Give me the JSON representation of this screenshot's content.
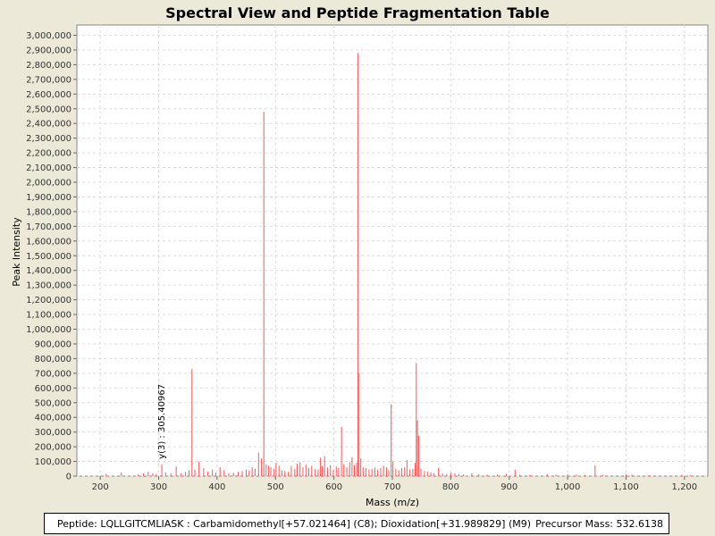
{
  "chart_data": {
    "type": "bar",
    "title": "Spectral View and Peptide Fragmentation Table",
    "xlabel": "Mass (m/z)",
    "ylabel": "Peak Intensity",
    "xlim": [
      160,
      1240
    ],
    "ylim": [
      0,
      3070000
    ],
    "x_ticks": [
      200,
      300,
      400,
      500,
      600,
      700,
      800,
      900,
      1000,
      1100,
      1200
    ],
    "x_tick_labels": [
      "200",
      "300",
      "400",
      "500",
      "600",
      "700",
      "800",
      "900",
      "1,000",
      "1,100",
      "1,200"
    ],
    "y_ticks": [
      0,
      100000,
      200000,
      300000,
      400000,
      500000,
      600000,
      700000,
      800000,
      900000,
      1000000,
      1100000,
      1200000,
      1300000,
      1400000,
      1500000,
      1600000,
      1700000,
      1800000,
      1900000,
      2000000,
      2100000,
      2200000,
      2300000,
      2400000,
      2500000,
      2600000,
      2700000,
      2800000,
      2900000,
      3000000
    ],
    "y_tick_labels": [
      "0",
      "100,000",
      "200,000",
      "300,000",
      "400,000",
      "500,000",
      "600,000",
      "700,000",
      "800,000",
      "900,000",
      "1,000,000",
      "1,100,000",
      "1,200,000",
      "1,300,000",
      "1,400,000",
      "1,500,000",
      "1,600,000",
      "1,700,000",
      "1,800,000",
      "1,900,000",
      "2,000,000",
      "2,100,000",
      "2,200,000",
      "2,300,000",
      "2,400,000",
      "2,500,000",
      "2,600,000",
      "2,700,000",
      "2,800,000",
      "2,900,000",
      "3,000,000"
    ],
    "grid": true,
    "peak_color": "#ff5555",
    "peaks": [
      {
        "mz": 210,
        "i": 15000
      },
      {
        "mz": 236,
        "i": 25000
      },
      {
        "mz": 265,
        "i": 12000
      },
      {
        "mz": 274,
        "i": 18000
      },
      {
        "mz": 282,
        "i": 30000
      },
      {
        "mz": 290,
        "i": 20000
      },
      {
        "mz": 296,
        "i": 15000
      },
      {
        "mz": 305.40967,
        "i": 80000
      },
      {
        "mz": 312,
        "i": 25000
      },
      {
        "mz": 321,
        "i": 20000
      },
      {
        "mz": 330,
        "i": 65000
      },
      {
        "mz": 338,
        "i": 18000
      },
      {
        "mz": 346,
        "i": 30000
      },
      {
        "mz": 352,
        "i": 40000
      },
      {
        "mz": 357,
        "i": 730000
      },
      {
        "mz": 362,
        "i": 45000
      },
      {
        "mz": 369,
        "i": 100000
      },
      {
        "mz": 377,
        "i": 55000
      },
      {
        "mz": 384,
        "i": 30000
      },
      {
        "mz": 392,
        "i": 45000
      },
      {
        "mz": 398,
        "i": 25000
      },
      {
        "mz": 405,
        "i": 60000
      },
      {
        "mz": 412,
        "i": 40000
      },
      {
        "mz": 420,
        "i": 20000
      },
      {
        "mz": 428,
        "i": 25000
      },
      {
        "mz": 436,
        "i": 30000
      },
      {
        "mz": 443,
        "i": 35000
      },
      {
        "mz": 450,
        "i": 45000
      },
      {
        "mz": 455,
        "i": 40000
      },
      {
        "mz": 460,
        "i": 60000
      },
      {
        "mz": 465,
        "i": 50000
      },
      {
        "mz": 471,
        "i": 160000
      },
      {
        "mz": 476,
        "i": 120000
      },
      {
        "mz": 480,
        "i": 2480000
      },
      {
        "mz": 484,
        "i": 80000
      },
      {
        "mz": 488,
        "i": 70000
      },
      {
        "mz": 492,
        "i": 60000
      },
      {
        "mz": 497,
        "i": 50000
      },
      {
        "mz": 501,
        "i": 90000
      },
      {
        "mz": 506,
        "i": 70000
      },
      {
        "mz": 511,
        "i": 40000
      },
      {
        "mz": 516,
        "i": 35000
      },
      {
        "mz": 522,
        "i": 30000
      },
      {
        "mz": 527,
        "i": 70000
      },
      {
        "mz": 533,
        "i": 50000
      },
      {
        "mz": 537,
        "i": 85000
      },
      {
        "mz": 542,
        "i": 95000
      },
      {
        "mz": 547,
        "i": 60000
      },
      {
        "mz": 552,
        "i": 80000
      },
      {
        "mz": 557,
        "i": 55000
      },
      {
        "mz": 562,
        "i": 70000
      },
      {
        "mz": 568,
        "i": 50000
      },
      {
        "mz": 573,
        "i": 45000
      },
      {
        "mz": 577,
        "i": 125000
      },
      {
        "mz": 580,
        "i": 70000
      },
      {
        "mz": 584,
        "i": 135000
      },
      {
        "mz": 589,
        "i": 60000
      },
      {
        "mz": 594,
        "i": 75000
      },
      {
        "mz": 599,
        "i": 45000
      },
      {
        "mz": 604,
        "i": 65000
      },
      {
        "mz": 608,
        "i": 55000
      },
      {
        "mz": 613,
        "i": 335000
      },
      {
        "mz": 617,
        "i": 80000
      },
      {
        "mz": 622,
        "i": 60000
      },
      {
        "mz": 627,
        "i": 95000
      },
      {
        "mz": 631,
        "i": 130000
      },
      {
        "mz": 635,
        "i": 75000
      },
      {
        "mz": 639,
        "i": 90000
      },
      {
        "mz": 641,
        "i": 2880000
      },
      {
        "mz": 643,
        "i": 700000
      },
      {
        "mz": 646,
        "i": 120000
      },
      {
        "mz": 650,
        "i": 60000
      },
      {
        "mz": 655,
        "i": 55000
      },
      {
        "mz": 660,
        "i": 45000
      },
      {
        "mz": 665,
        "i": 50000
      },
      {
        "mz": 670,
        "i": 60000
      },
      {
        "mz": 675,
        "i": 45000
      },
      {
        "mz": 680,
        "i": 55000
      },
      {
        "mz": 685,
        "i": 70000
      },
      {
        "mz": 690,
        "i": 60000
      },
      {
        "mz": 694,
        "i": 40000
      },
      {
        "mz": 698,
        "i": 490000
      },
      {
        "mz": 701,
        "i": 100000
      },
      {
        "mz": 706,
        "i": 50000
      },
      {
        "mz": 711,
        "i": 40000
      },
      {
        "mz": 716,
        "i": 55000
      },
      {
        "mz": 721,
        "i": 60000
      },
      {
        "mz": 725,
        "i": 110000
      },
      {
        "mz": 730,
        "i": 45000
      },
      {
        "mz": 735,
        "i": 50000
      },
      {
        "mz": 739,
        "i": 90000
      },
      {
        "mz": 741,
        "i": 770000
      },
      {
        "mz": 743,
        "i": 380000
      },
      {
        "mz": 745,
        "i": 275000
      },
      {
        "mz": 749,
        "i": 50000
      },
      {
        "mz": 755,
        "i": 35000
      },
      {
        "mz": 760,
        "i": 30000
      },
      {
        "mz": 766,
        "i": 25000
      },
      {
        "mz": 771,
        "i": 20000
      },
      {
        "mz": 779,
        "i": 55000
      },
      {
        "mz": 786,
        "i": 20000
      },
      {
        "mz": 793,
        "i": 15000
      },
      {
        "mz": 800,
        "i": 25000
      },
      {
        "mz": 807,
        "i": 20000
      },
      {
        "mz": 814,
        "i": 15000
      },
      {
        "mz": 822,
        "i": 12000
      },
      {
        "mz": 836,
        "i": 20000
      },
      {
        "mz": 848,
        "i": 12000
      },
      {
        "mz": 862,
        "i": 10000
      },
      {
        "mz": 880,
        "i": 12000
      },
      {
        "mz": 895,
        "i": 15000
      },
      {
        "mz": 910,
        "i": 45000
      },
      {
        "mz": 918,
        "i": 10000
      },
      {
        "mz": 935,
        "i": 8000
      },
      {
        "mz": 965,
        "i": 15000
      },
      {
        "mz": 980,
        "i": 10000
      },
      {
        "mz": 1000,
        "i": 12000
      },
      {
        "mz": 1015,
        "i": 10000
      },
      {
        "mz": 1030,
        "i": 8000
      },
      {
        "mz": 1047,
        "i": 75000
      },
      {
        "mz": 1060,
        "i": 8000
      },
      {
        "mz": 1100,
        "i": 12000
      },
      {
        "mz": 1110,
        "i": 10000
      },
      {
        "mz": 1140,
        "i": 6000
      },
      {
        "mz": 1195,
        "i": 8000
      },
      {
        "mz": 1210,
        "i": 6000
      }
    ],
    "annotations": [
      {
        "text": "y(3) : 305.40967",
        "mz": 305.40967,
        "i": 80000
      }
    ]
  },
  "footer": {
    "peptide": "Peptide: LQLLGITCMLIASK : Carbamidomethyl[+57.021464] (C8); Dioxidation[+31.989829] (M9)",
    "precursor": "Precursor Mass: 532.6138"
  }
}
